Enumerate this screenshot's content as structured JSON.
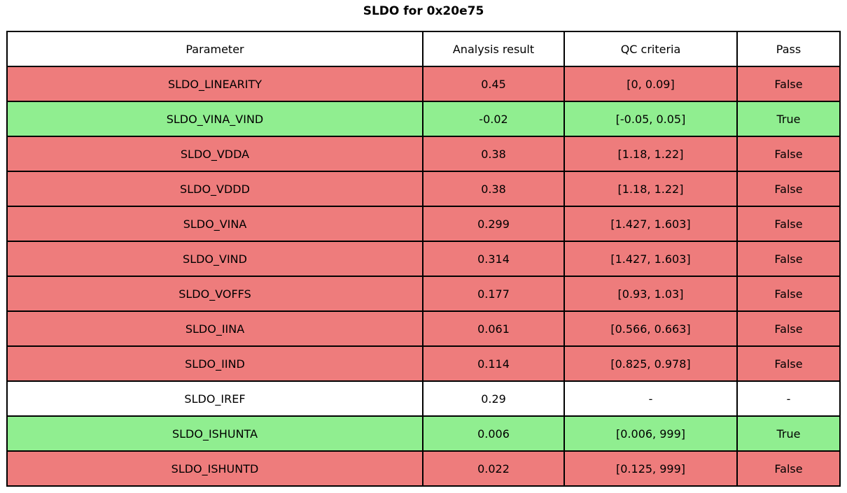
{
  "page": {
    "title": "SLDO for 0x20e75"
  },
  "colors": {
    "fail": "#ee7c7c",
    "pass": "#90ee90",
    "none": "#ffffff",
    "border": "#000000",
    "text": "#000000"
  },
  "chart_data": {
    "type": "table",
    "title": "SLDO for 0x20e75",
    "columns": [
      "Parameter",
      "Analysis result",
      "QC criteria",
      "Pass"
    ],
    "rows": [
      {
        "parameter": "SLDO_LINEARITY",
        "result": "0.45",
        "criteria": "[0, 0.09]",
        "pass": "False",
        "status": "fail"
      },
      {
        "parameter": "SLDO_VINA_VIND",
        "result": "-0.02",
        "criteria": "[-0.05, 0.05]",
        "pass": "True",
        "status": "pass"
      },
      {
        "parameter": "SLDO_VDDA",
        "result": "0.38",
        "criteria": "[1.18, 1.22]",
        "pass": "False",
        "status": "fail"
      },
      {
        "parameter": "SLDO_VDDD",
        "result": "0.38",
        "criteria": "[1.18, 1.22]",
        "pass": "False",
        "status": "fail"
      },
      {
        "parameter": "SLDO_VINA",
        "result": "0.299",
        "criteria": "[1.427, 1.603]",
        "pass": "False",
        "status": "fail"
      },
      {
        "parameter": "SLDO_VIND",
        "result": "0.314",
        "criteria": "[1.427, 1.603]",
        "pass": "False",
        "status": "fail"
      },
      {
        "parameter": "SLDO_VOFFS",
        "result": "0.177",
        "criteria": "[0.93, 1.03]",
        "pass": "False",
        "status": "fail"
      },
      {
        "parameter": "SLDO_IINA",
        "result": "0.061",
        "criteria": "[0.566, 0.663]",
        "pass": "False",
        "status": "fail"
      },
      {
        "parameter": "SLDO_IIND",
        "result": "0.114",
        "criteria": "[0.825, 0.978]",
        "pass": "False",
        "status": "fail"
      },
      {
        "parameter": "SLDO_IREF",
        "result": "0.29",
        "criteria": "-",
        "pass": "-",
        "status": "none"
      },
      {
        "parameter": "SLDO_ISHUNTA",
        "result": "0.006",
        "criteria": "[0.006, 999]",
        "pass": "True",
        "status": "pass"
      },
      {
        "parameter": "SLDO_ISHUNTD",
        "result": "0.022",
        "criteria": "[0.125, 999]",
        "pass": "False",
        "status": "fail"
      }
    ]
  }
}
